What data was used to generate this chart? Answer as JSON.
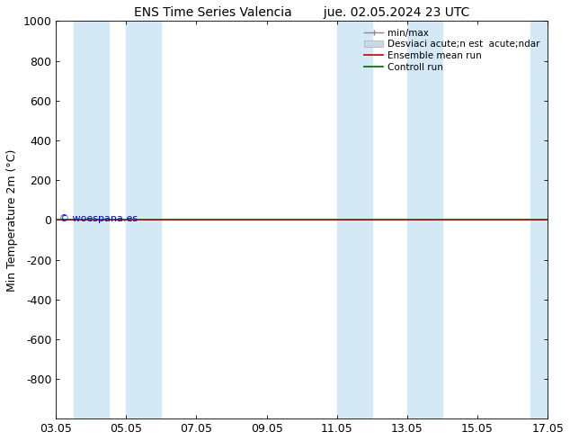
{
  "title_left": "ENS Time Series Valencia",
  "title_right": "jue. 02.05.2024 23 UTC",
  "ylabel": "Min Temperature 2m (°C)",
  "ylim_top": -1000,
  "ylim_bottom": 1000,
  "yticks": [
    -800,
    -600,
    -400,
    -200,
    0,
    200,
    400,
    600,
    800,
    1000
  ],
  "xtick_labels": [
    "03.05",
    "05.05",
    "07.05",
    "09.05",
    "11.05",
    "13.05",
    "15.05",
    "17.05"
  ],
  "xtick_positions": [
    0,
    2,
    4,
    6,
    8,
    10,
    12,
    14
  ],
  "xlim": [
    0,
    14
  ],
  "shaded_bands": [
    [
      0.5,
      1.5
    ],
    [
      2.0,
      3.0
    ],
    [
      8.0,
      9.0
    ],
    [
      10.0,
      11.0
    ],
    [
      13.5,
      14.0
    ]
  ],
  "band_color": "#d4e8f5",
  "green_line_y": 0,
  "red_line_y": 0,
  "watermark": "© woespana.es",
  "watermark_color": "#0000cc",
  "legend_labels": [
    "min/max",
    "Desviaci acute;n est  acute;ndar",
    "Ensemble mean run",
    "Controll run"
  ],
  "legend_colors_line": [
    "#a0b8c8",
    "#b8ccd8",
    "#cc0000",
    "#006600"
  ],
  "bg_color": "#ffffff",
  "plot_bg_color": "#ffffff",
  "font_size": 9,
  "title_font_size": 10
}
